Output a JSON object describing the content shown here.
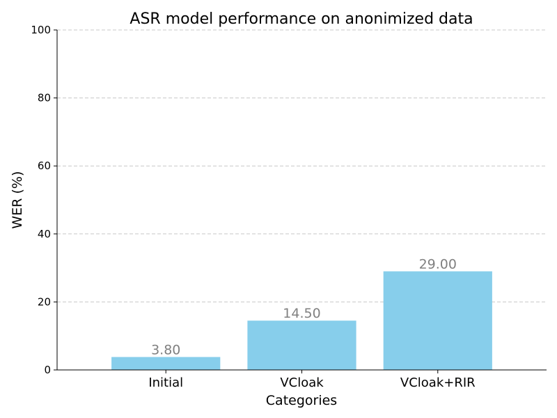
{
  "chart_data": {
    "type": "bar",
    "title": "ASR model performance on anonimized data",
    "xlabel": "Categories",
    "ylabel": "WER (%)",
    "categories": [
      "Initial",
      "VCloak",
      "VCloak+RIR"
    ],
    "values": [
      3.8,
      14.5,
      29.0
    ],
    "value_labels": [
      "3.80",
      "14.50",
      "29.00"
    ],
    "ylim": [
      0,
      100
    ],
    "yticks": [
      0,
      20,
      40,
      60,
      80,
      100
    ],
    "grid": "y",
    "bar_color": "#87CEEB",
    "value_label_color": "#808080"
  }
}
